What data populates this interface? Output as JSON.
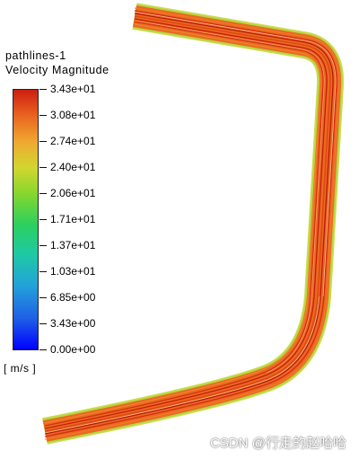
{
  "legend": {
    "title_line1": "pathlines-1",
    "title_line2": "Velocity Magnitude",
    "units": "[ m/s ]",
    "ticks": [
      "3.43e+01",
      "3.08e+01",
      "2.74e+01",
      "2.40e+01",
      "2.06e+01",
      "1.71e+01",
      "1.37e+01",
      "1.03e+01",
      "6.85e+00",
      "3.43e+00",
      "0.00e+00"
    ]
  },
  "watermark": "CSDN @行走的赵哈哈",
  "colors": {
    "max": "#cc1f10",
    "high": "#e9641f",
    "mid_high": "#f0a831",
    "mid": "#d2d630",
    "mid_low": "#86d62d",
    "low": "#1fc9a3",
    "min": "#0000ff"
  }
}
